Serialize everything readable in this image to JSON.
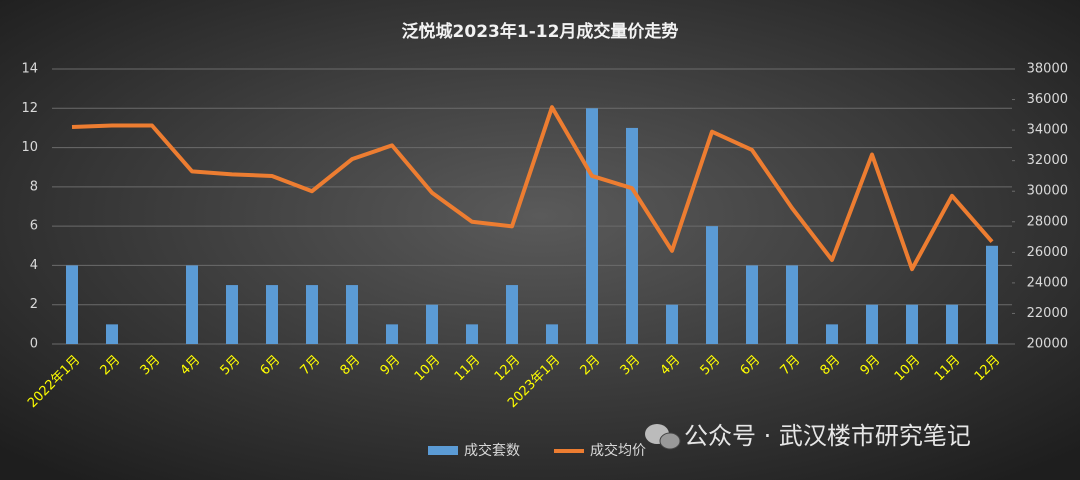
{
  "chart_data": {
    "type": "bar-line",
    "title": "泛悦城2023年1-12月成交量价走势",
    "categories": [
      "2022年1月",
      "2月",
      "3月",
      "4月",
      "5月",
      "6月",
      "7月",
      "8月",
      "9月",
      "10月",
      "11月",
      "12月",
      "2023年1月",
      "2月",
      "3月",
      "4月",
      "5月",
      "6月",
      "7月",
      "8月",
      "9月",
      "10月",
      "11月",
      "12月"
    ],
    "series": [
      {
        "name": "成交套数",
        "type": "bar",
        "color": "#5b9bd5",
        "values": [
          4,
          1,
          0,
          4,
          3,
          3,
          3,
          3,
          1,
          2,
          1,
          3,
          1,
          12,
          11,
          2,
          6,
          4,
          4,
          1,
          2,
          2,
          2,
          5
        ]
      },
      {
        "name": "成交均价",
        "type": "line",
        "axis": "y2",
        "color": "#ed7d31",
        "values": [
          34200,
          34300,
          34300,
          31300,
          31100,
          31000,
          30000,
          32100,
          33000,
          29900,
          28000,
          27700,
          35500,
          31000,
          30200,
          26100,
          33900,
          32700,
          28900,
          25500,
          32400,
          24900,
          29700,
          26700
        ]
      }
    ],
    "ylim": [
      0,
      14
    ],
    "yticks": [
      0,
      2,
      4,
      6,
      8,
      10,
      12,
      14
    ],
    "y2lim": [
      20000,
      38000
    ],
    "y2ticks": [
      20000,
      22000,
      24000,
      26000,
      28000,
      30000,
      32000,
      34000,
      36000,
      38000
    ],
    "grid": true,
    "legend": "bottom",
    "watermark": "公众号 · 武汉楼市研究笔记"
  }
}
